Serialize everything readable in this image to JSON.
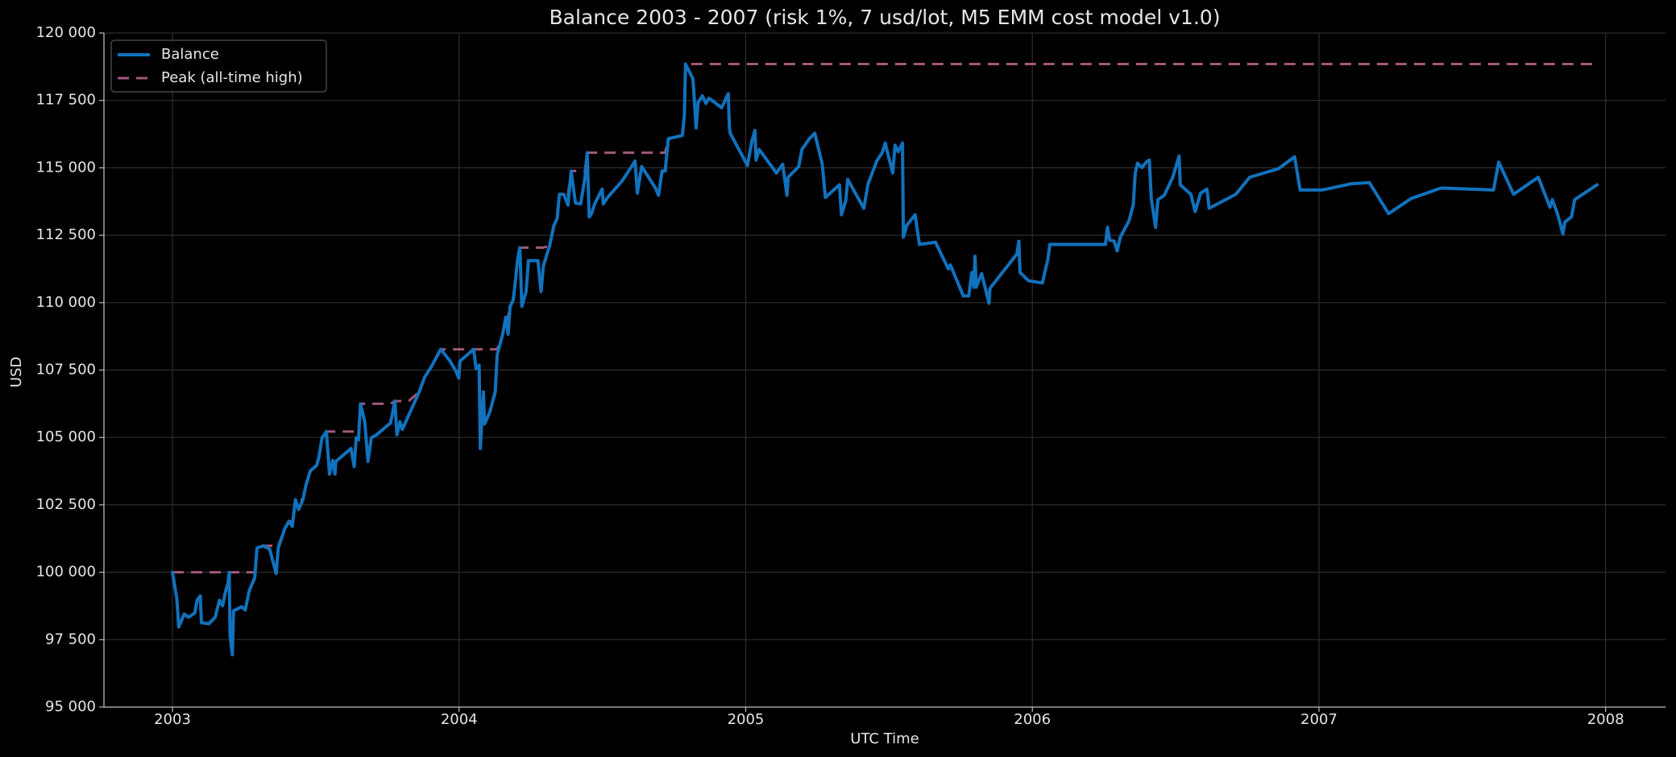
{
  "chart_data": {
    "type": "line",
    "title": "Balance 2003 - 2007 (risk 1%, 7 usd/lot, M5 EMM cost model v1.0)",
    "xlabel": "UTC Time",
    "ylabel": "USD",
    "xlim": [
      2002.761,
      2008.209
    ],
    "xticks": [
      2003,
      2004,
      2005,
      2006,
      2007,
      2008
    ],
    "ylim": [
      95000,
      120000
    ],
    "yticks": [
      {
        "value": 95000,
        "label": "95 000"
      },
      {
        "value": 97500,
        "label": "97 500"
      },
      {
        "value": 100000,
        "label": "100 000"
      },
      {
        "value": 102500,
        "label": "102 500"
      },
      {
        "value": 105000,
        "label": "105 000"
      },
      {
        "value": 107500,
        "label": "107 500"
      },
      {
        "value": 110000,
        "label": "110 000"
      },
      {
        "value": 112500,
        "label": "112 500"
      },
      {
        "value": 115000,
        "label": "115 000"
      },
      {
        "value": 117500,
        "label": "117 500"
      },
      {
        "value": 120000,
        "label": "120 000"
      }
    ],
    "grid": true,
    "legend": "upper left",
    "series": [
      {
        "name": "Balance",
        "color": "#1172bd",
        "dashed": false,
        "x": [
          2003.0,
          2003.015,
          2003.022,
          2003.041,
          2003.056,
          2003.078,
          2003.086,
          2003.097,
          2003.101,
          2003.127,
          2003.149,
          2003.164,
          2003.175,
          2003.186,
          2003.194,
          2003.198,
          2003.201,
          2003.209,
          2003.213,
          2003.242,
          2003.254,
          2003.268,
          2003.287,
          2003.295,
          2003.317,
          2003.339,
          2003.362,
          2003.369,
          2003.392,
          2003.406,
          2003.418,
          2003.429,
          2003.44,
          2003.455,
          2003.466,
          2003.481,
          2003.503,
          2003.511,
          2003.522,
          2003.537,
          2003.548,
          2003.559,
          2003.567,
          2003.57,
          2003.623,
          2003.634,
          2003.641,
          2003.649,
          2003.656,
          2003.671,
          2003.682,
          2003.694,
          2003.712,
          2003.761,
          2003.776,
          2003.783,
          2003.794,
          2003.802,
          2003.824,
          2003.861,
          2003.88,
          2003.902,
          2003.936,
          2003.966,
          2003.988,
          2003.999,
          2004.003,
          2004.029,
          2004.051,
          2004.059,
          2004.07,
          2004.074,
          2004.085,
          2004.089,
          2004.107,
          2004.119,
          2004.126,
          2004.133,
          2004.152,
          2004.163,
          2004.171,
          2004.178,
          2004.189,
          2004.197,
          2004.204,
          2004.212,
          2004.219,
          2004.234,
          2004.242,
          2004.275,
          2004.286,
          2004.294,
          2004.316,
          2004.331,
          2004.342,
          2004.35,
          2004.365,
          2004.38,
          2004.391,
          2004.406,
          2004.424,
          2004.439,
          2004.447,
          2004.454,
          2004.462,
          2004.473,
          2004.499,
          2004.503,
          2004.518,
          2004.57,
          2004.614,
          2004.622,
          2004.637,
          2004.685,
          2004.696,
          2004.708,
          2004.719,
          2004.73,
          2004.779,
          2004.786,
          2004.79,
          2004.816,
          2004.827,
          2004.834,
          2004.849,
          2004.861,
          2004.872,
          2004.916,
          2004.939,
          2004.943,
          2004.946,
          2005.006,
          2005.021,
          2005.032,
          2005.036,
          2005.047,
          2005.107,
          2005.129,
          2005.144,
          2005.148,
          2005.185,
          2005.196,
          2005.222,
          2005.241,
          2005.267,
          2005.278,
          2005.327,
          2005.334,
          2005.349,
          2005.356,
          2005.412,
          2005.427,
          2005.457,
          2005.476,
          2005.487,
          2005.494,
          2005.513,
          2005.521,
          2005.532,
          2005.547,
          2005.55,
          2005.562,
          2005.591,
          2005.606,
          2005.662,
          2005.707,
          2005.714,
          2005.759,
          2005.778,
          2005.789,
          2005.796,
          2005.8,
          2005.804,
          2005.823,
          2005.849,
          2005.852,
          2005.946,
          2005.953,
          2005.957,
          2005.987,
          2006.035,
          2006.054,
          2006.061,
          2006.255,
          2006.262,
          2006.27,
          2006.285,
          2006.296,
          2006.307,
          2006.337,
          2006.352,
          2006.359,
          2006.367,
          2006.382,
          2006.397,
          2006.408,
          2006.415,
          2006.43,
          2006.438,
          2006.46,
          2006.49,
          2006.512,
          2006.516,
          2006.553,
          2006.568,
          2006.587,
          2006.609,
          2006.617,
          2006.71,
          2006.758,
          2006.859,
          2006.915,
          2006.934,
          2007.012,
          2007.113,
          2007.176,
          2007.243,
          2007.321,
          2007.426,
          2007.609,
          2007.627,
          2007.679,
          2007.765,
          2007.806,
          2007.814,
          2007.832,
          2007.851,
          2007.858,
          2007.881,
          2007.892,
          2007.97
        ],
        "values": [
          100000,
          99040,
          97970,
          98450,
          98330,
          98490,
          98960,
          99120,
          98130,
          98090,
          98330,
          98960,
          98760,
          99320,
          99600,
          100000,
          97650,
          96940,
          98570,
          98720,
          98600,
          99320,
          99790,
          100900,
          100980,
          100860,
          99950,
          100900,
          101620,
          101890,
          101700,
          102690,
          102330,
          102690,
          103240,
          103760,
          103960,
          104270,
          104990,
          105220,
          103640,
          104150,
          103640,
          104110,
          104590,
          103920,
          104990,
          104910,
          106250,
          105580,
          104110,
          104990,
          105100,
          105540,
          106350,
          105100,
          105580,
          105300,
          105820,
          106690,
          107240,
          107600,
          108270,
          107870,
          107480,
          107200,
          107830,
          108070,
          108270,
          107560,
          107680,
          104590,
          106690,
          105500,
          105940,
          106410,
          106690,
          108070,
          108830,
          109460,
          108830,
          109860,
          110100,
          110850,
          111600,
          112040,
          109860,
          110410,
          111560,
          111560,
          110410,
          111360,
          112120,
          112870,
          113110,
          114020,
          114020,
          113620,
          114880,
          113700,
          113660,
          114610,
          115560,
          113180,
          113300,
          113660,
          114210,
          113660,
          113900,
          114530,
          115250,
          114060,
          115050,
          114250,
          113980,
          114880,
          114880,
          116080,
          116200,
          116950,
          118850,
          118300,
          116480,
          117430,
          117670,
          117390,
          117580,
          117230,
          117750,
          116500,
          116280,
          115090,
          115960,
          116390,
          115290,
          115680,
          114810,
          115130,
          113980,
          114650,
          115050,
          115680,
          116080,
          116280,
          115130,
          113900,
          114370,
          113260,
          113780,
          114570,
          113500,
          114410,
          115250,
          115560,
          115920,
          115600,
          114810,
          115840,
          115600,
          115920,
          112430,
          112870,
          113260,
          112160,
          112240,
          111250,
          111400,
          110250,
          110250,
          111120,
          110570,
          111720,
          110570,
          111080,
          109980,
          110530,
          111800,
          112280,
          111120,
          110810,
          110730,
          111600,
          112160,
          112160,
          112790,
          112320,
          112280,
          111920,
          112430,
          113030,
          113620,
          114810,
          115170,
          115010,
          115210,
          115290,
          113860,
          112790,
          113820,
          113980,
          114650,
          115440,
          114370,
          114020,
          113380,
          114060,
          114210,
          113500,
          114020,
          114650,
          114970,
          115410,
          114180,
          114180,
          114410,
          114450,
          113300,
          113860,
          114250,
          114180,
          115210,
          114020,
          114650,
          113540,
          113820,
          113300,
          112550,
          112990,
          113180,
          113820,
          114370
        ]
      },
      {
        "name": "Peak (all-time high)",
        "color": "#a3587d",
        "dashed": true,
        "x": [
          2003.0,
          2003.287,
          2003.295,
          2003.317,
          2003.369,
          2003.392,
          2003.406,
          2003.418,
          2003.429,
          2003.455,
          2003.466,
          2003.481,
          2003.503,
          2003.511,
          2003.522,
          2003.537,
          2003.649,
          2003.656,
          2003.761,
          2003.776,
          2003.824,
          2003.861,
          2003.88,
          2003.902,
          2003.936,
          2004.133,
          2004.152,
          2004.163,
          2004.171,
          2004.178,
          2004.189,
          2004.197,
          2004.204,
          2004.212,
          2004.294,
          2004.316,
          2004.331,
          2004.342,
          2004.35,
          2004.38,
          2004.391,
          2004.439,
          2004.447,
          2004.719,
          2004.73,
          2004.779,
          2004.786,
          2004.79,
          2007.97
        ],
        "values": [
          100000,
          100000,
          100900,
          100980,
          100980,
          101620,
          101890,
          101890,
          102690,
          102690,
          103240,
          103760,
          103960,
          104270,
          104990,
          105220,
          105220,
          106250,
          106250,
          106350,
          106350,
          106690,
          107240,
          107600,
          108270,
          108270,
          108830,
          109460,
          109460,
          109860,
          110100,
          110850,
          111600,
          112040,
          112040,
          112120,
          112870,
          113110,
          114020,
          114020,
          114880,
          114880,
          115560,
          115560,
          116080,
          116200,
          116950,
          118850,
          118850
        ]
      }
    ]
  }
}
